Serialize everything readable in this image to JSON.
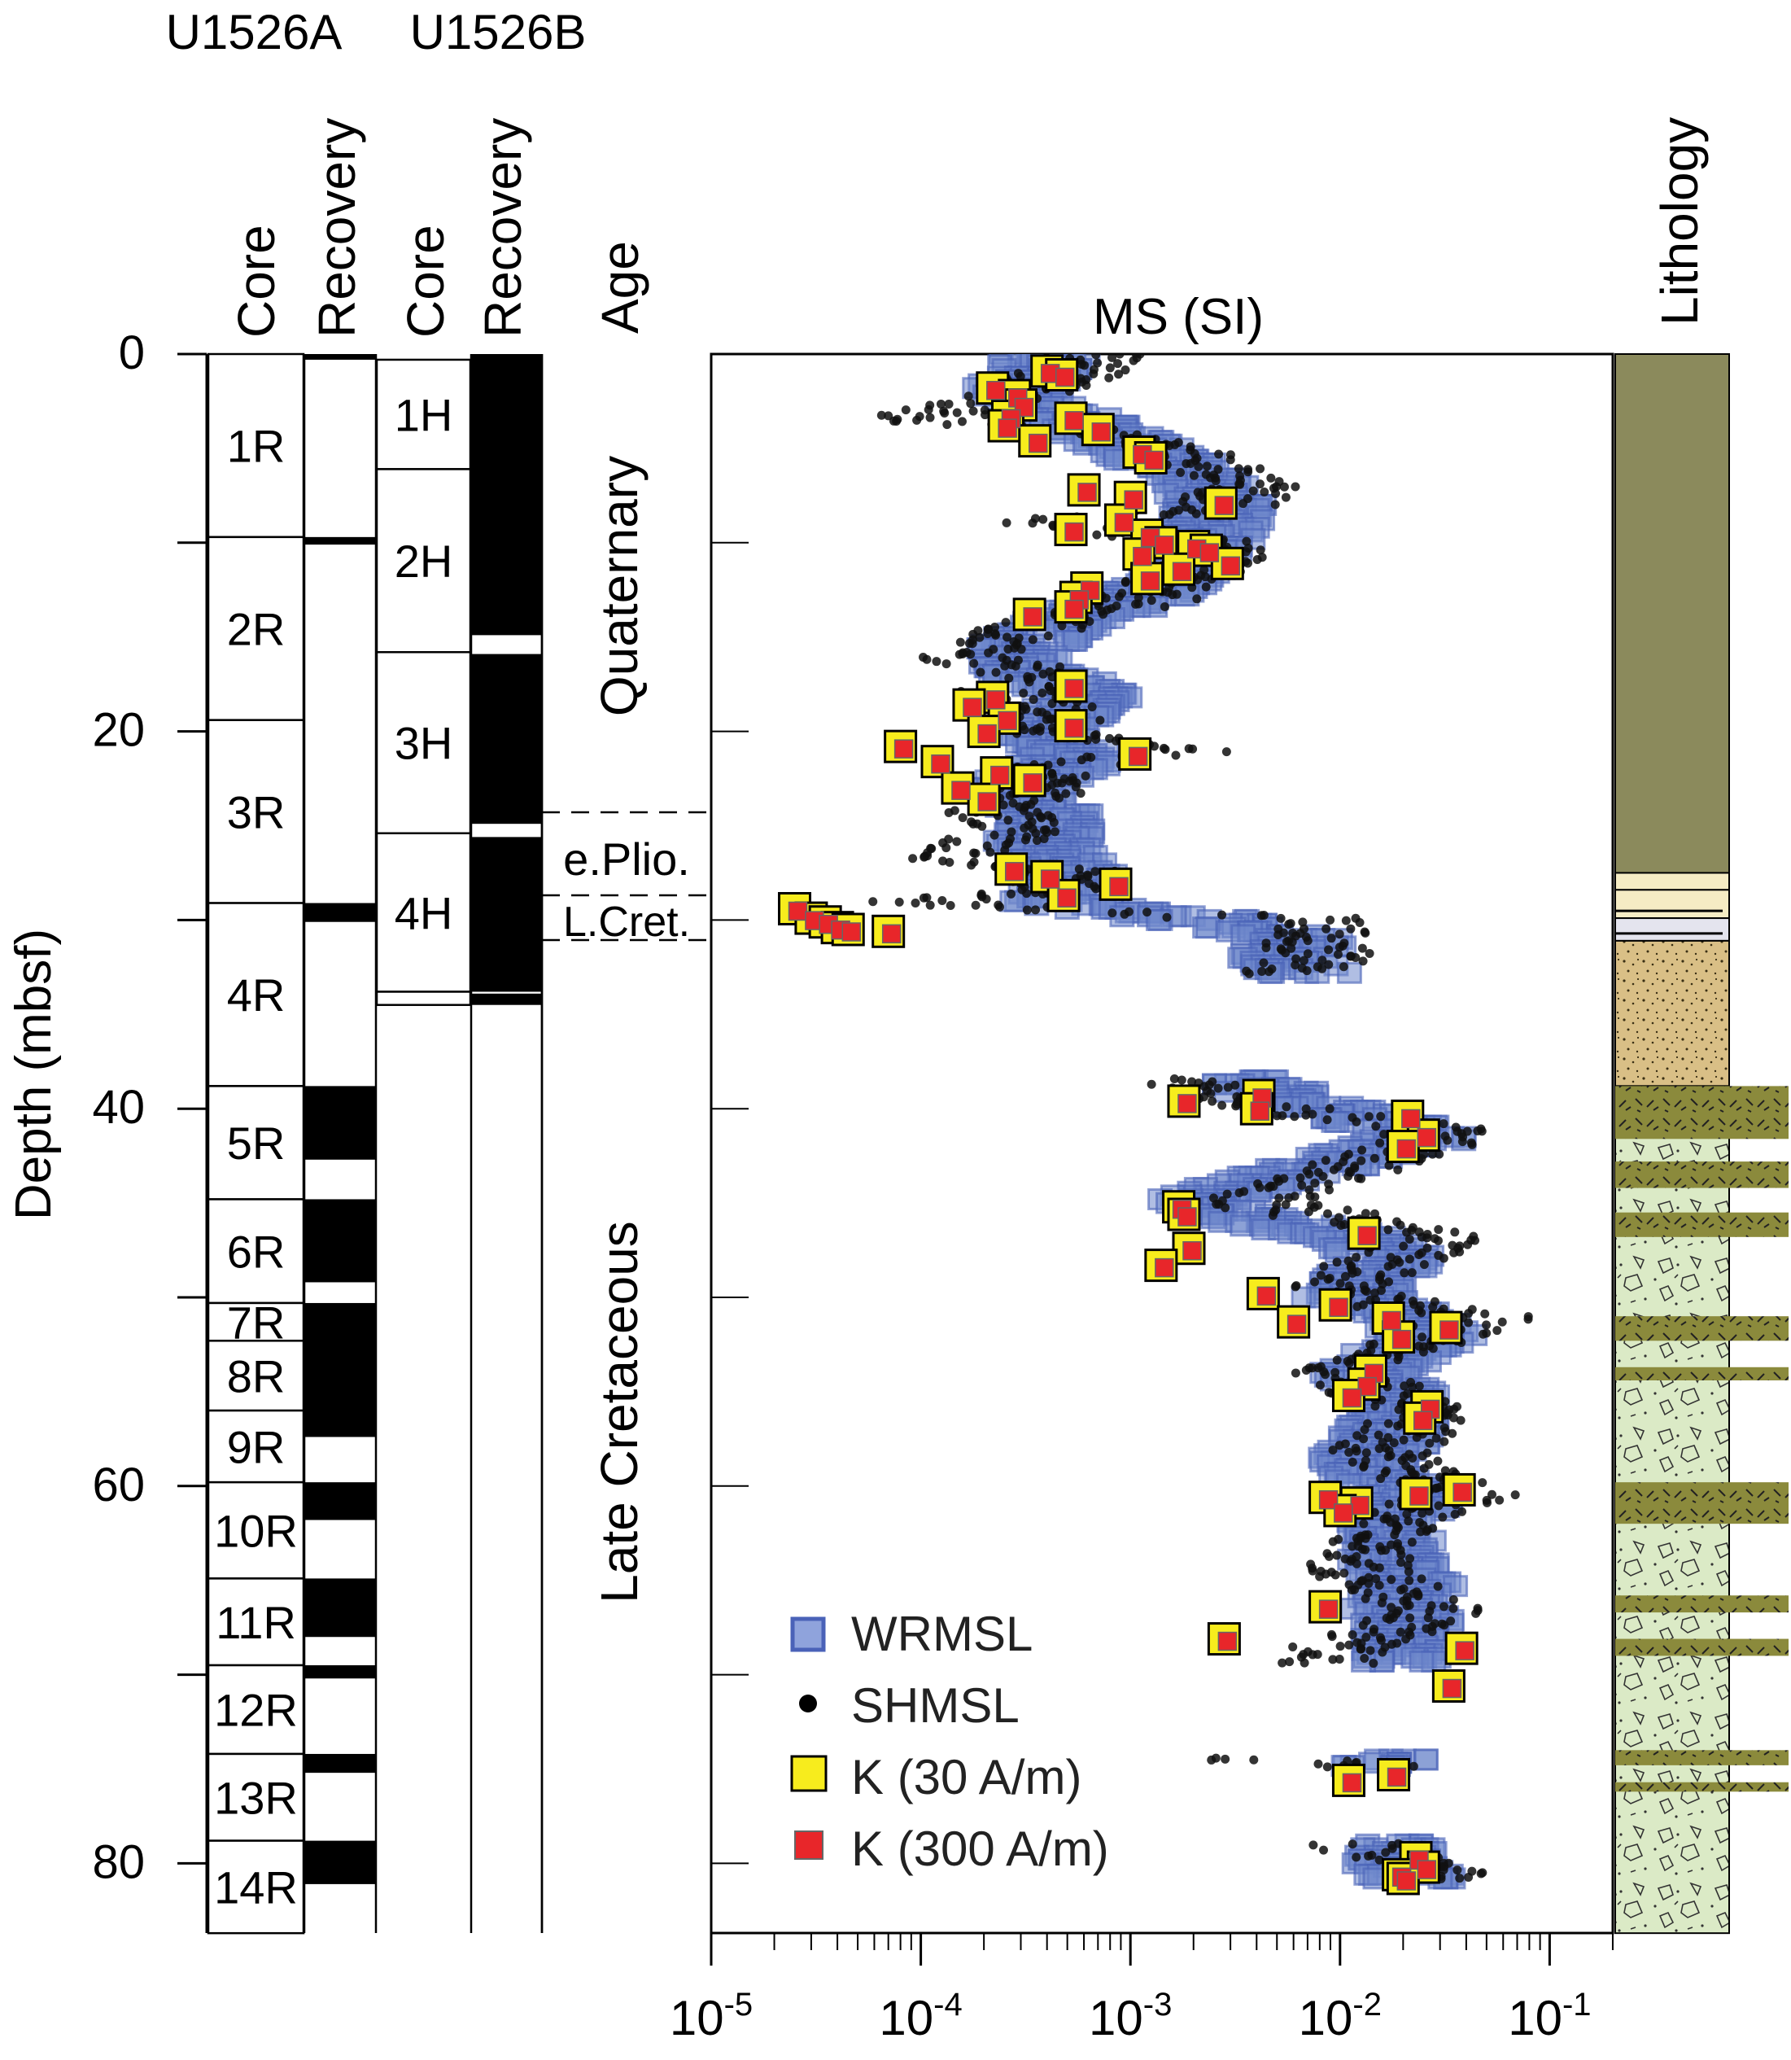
{
  "headers": {
    "site_a": "U1526A",
    "site_b": "U1526B",
    "core_a": "Core",
    "recovery_a": "Recovery",
    "core_b": "Core",
    "recovery_b": "Recovery",
    "age": "Age",
    "ms": "MS (SI)",
    "lithology": "Lithology",
    "depth_axis": "Depth (mbsf)"
  },
  "depth_ticks": [
    {
      "label": "0",
      "value": 0
    },
    {
      "label": "20",
      "value": 20
    },
    {
      "label": "40",
      "value": 40
    },
    {
      "label": "60",
      "value": 60
    },
    {
      "label": "80",
      "value": 80
    }
  ],
  "ms_ticks": [
    {
      "base": "10",
      "exp": "-5",
      "value": -5
    },
    {
      "base": "10",
      "exp": "-4",
      "value": -4
    },
    {
      "base": "10",
      "exp": "-3",
      "value": -3
    },
    {
      "base": "10",
      "exp": "-2",
      "value": -2
    },
    {
      "base": "10",
      "exp": "-1",
      "value": -1
    }
  ],
  "cores_a": [
    {
      "label": "1R",
      "top": 0,
      "bottom": 9.7
    },
    {
      "label": "2R",
      "top": 9.7,
      "bottom": 19.4
    },
    {
      "label": "3R",
      "top": 19.4,
      "bottom": 29.1
    },
    {
      "label": "4R",
      "top": 29.1,
      "bottom": 38.8
    },
    {
      "label": "5R",
      "top": 38.8,
      "bottom": 44.8
    },
    {
      "label": "6R",
      "top": 44.8,
      "bottom": 50.3
    },
    {
      "label": "7R",
      "top": 50.3,
      "bottom": 52.3
    },
    {
      "label": "8R",
      "top": 52.3,
      "bottom": 56.0
    },
    {
      "label": "9R",
      "top": 56.0,
      "bottom": 59.8
    },
    {
      "label": "10R",
      "top": 59.8,
      "bottom": 64.9
    },
    {
      "label": "11R",
      "top": 64.9,
      "bottom": 69.5
    },
    {
      "label": "12R",
      "top": 69.5,
      "bottom": 74.2
    },
    {
      "label": "13R",
      "top": 74.2,
      "bottom": 78.8
    },
    {
      "label": "14R",
      "top": 78.8,
      "bottom": 83.7
    }
  ],
  "recovery_a": [
    {
      "top": 0.0,
      "bottom": 0.3
    },
    {
      "top": 9.7,
      "bottom": 10.1
    },
    {
      "top": 29.1,
      "bottom": 30.1
    },
    {
      "top": 38.8,
      "bottom": 42.7
    },
    {
      "top": 44.8,
      "bottom": 49.2
    },
    {
      "top": 50.3,
      "bottom": 57.4
    },
    {
      "top": 59.8,
      "bottom": 61.8
    },
    {
      "top": 64.9,
      "bottom": 68.0
    },
    {
      "top": 69.5,
      "bottom": 70.2
    },
    {
      "top": 74.2,
      "bottom": 75.2
    },
    {
      "top": 78.8,
      "bottom": 81.1
    }
  ],
  "cores_b": [
    {
      "label": "1H",
      "top": 0.3,
      "bottom": 6.1
    },
    {
      "label": "2H",
      "top": 6.1,
      "bottom": 15.8
    },
    {
      "label": "3H",
      "top": 15.8,
      "bottom": 25.4
    },
    {
      "label": "4H",
      "top": 25.4,
      "bottom": 33.8
    },
    {
      "label": "",
      "top": 33.8,
      "bottom": 34.5
    }
  ],
  "recovery_b": [
    {
      "top": 0.0,
      "bottom": 14.9
    },
    {
      "top": 15.9,
      "bottom": 24.9
    },
    {
      "top": 25.6,
      "bottom": 33.8
    },
    {
      "top": 33.9,
      "bottom": 34.5
    }
  ],
  "age": {
    "quaternary": "Quaternary",
    "e_plio": "e.Plio.",
    "l_cret": "L.Cret.",
    "late_cretaceous": "Late Cretaceous"
  },
  "lithology_units": [
    {
      "top": 0.0,
      "bottom": 27.5,
      "color": "#8b8a5c",
      "pattern": "solid"
    },
    {
      "top": 27.5,
      "bottom": 28.4,
      "color": "#f5ecc4",
      "pattern": "solid"
    },
    {
      "top": 28.4,
      "bottom": 29.9,
      "color": "#f5ecc4",
      "pattern": "wavy"
    },
    {
      "top": 29.9,
      "bottom": 31.1,
      "color": "#e4e4ee",
      "pattern": "wavy"
    },
    {
      "top": 31.1,
      "bottom": 38.8,
      "color": "#d9bf86",
      "pattern": "sand"
    },
    {
      "top": 38.8,
      "bottom": 83.7,
      "color": "#dbeac6",
      "pattern": "breccia"
    }
  ],
  "olive_bands": [
    {
      "top": 38.8,
      "bottom": 41.6
    },
    {
      "top": 42.8,
      "bottom": 44.2
    },
    {
      "top": 45.5,
      "bottom": 46.8
    },
    {
      "top": 51.0,
      "bottom": 52.3
    },
    {
      "top": 53.7,
      "bottom": 54.4
    },
    {
      "top": 59.8,
      "bottom": 62.0
    },
    {
      "top": 65.8,
      "bottom": 66.7
    },
    {
      "top": 68.1,
      "bottom": 69.0
    },
    {
      "top": 74.0,
      "bottom": 74.8
    },
    {
      "top": 75.7,
      "bottom": 76.2
    }
  ],
  "legend": [
    {
      "label": "WRMSL",
      "marker": "blue-square"
    },
    {
      "label": "SHMSL",
      "marker": "black-dot"
    },
    {
      "label": "K (30 A/m)",
      "marker": "yellow-square"
    },
    {
      "label": "K (300 A/m)",
      "marker": "red-square"
    }
  ],
  "colors": {
    "wrmsl": "#4a62b8",
    "shmsl": "#1a1a1a",
    "k30": "#f7ec1d",
    "k300": "#e8262a",
    "olive": "#8b8a3c"
  },
  "chart_data": {
    "type": "scatter",
    "title": "MS (SI)",
    "ylabel": "Depth (mbsf)",
    "xlabel": "",
    "x_scale": "log",
    "xlim": [
      1e-05,
      0.2
    ],
    "ylim": [
      0,
      83.7
    ],
    "grid": false,
    "legend_position": "lower-left",
    "series": [
      {
        "name": "WRMSL",
        "profile": [
          [
            0.0,
            0.00045
          ],
          [
            1.0,
            0.0004
          ],
          [
            2.0,
            0.0003
          ],
          [
            3.0,
            0.0004
          ],
          [
            4.0,
            0.0008
          ],
          [
            5.0,
            0.0012
          ],
          [
            6.0,
            0.0018
          ],
          [
            7.0,
            0.0025
          ],
          [
            8.0,
            0.003
          ],
          [
            9.0,
            0.0028
          ],
          [
            10.0,
            0.0025
          ],
          [
            11.0,
            0.002
          ],
          [
            12.0,
            0.0018
          ],
          [
            13.0,
            0.0012
          ],
          [
            14.0,
            0.0006
          ],
          [
            15.0,
            0.0004
          ],
          [
            16.0,
            0.0003
          ],
          [
            17.0,
            0.0004
          ],
          [
            18.0,
            0.0007
          ],
          [
            19.0,
            0.0006
          ],
          [
            20.0,
            0.0004
          ],
          [
            21.0,
            0.0006
          ],
          [
            22.0,
            0.0005
          ],
          [
            23.0,
            0.0003
          ],
          [
            24.0,
            0.0004
          ],
          [
            25.0,
            0.0005
          ],
          [
            26.0,
            0.0004
          ],
          [
            27.0,
            0.0005
          ],
          [
            28.0,
            0.0007
          ],
          [
            29.0,
            0.00035
          ],
          [
            30.0,
            0.0025
          ],
          [
            31.0,
            0.008
          ],
          [
            32.0,
            0.006
          ],
          [
            33.0,
            0.008
          ],
          [
            38.5,
            0.0035
          ],
          [
            39.5,
            0.007
          ],
          [
            40.5,
            0.015
          ],
          [
            41.5,
            0.03
          ],
          [
            42.0,
            0.02
          ],
          [
            45.0,
            0.002
          ],
          [
            46.0,
            0.005
          ],
          [
            47.0,
            0.015
          ],
          [
            48.0,
            0.02
          ],
          [
            49.0,
            0.015
          ],
          [
            50.0,
            0.012
          ],
          [
            51.0,
            0.025
          ],
          [
            52.0,
            0.03
          ],
          [
            53.0,
            0.02
          ],
          [
            54.0,
            0.015
          ],
          [
            55.0,
            0.02
          ],
          [
            56.0,
            0.02
          ],
          [
            57.0,
            0.02
          ],
          [
            58.5,
            0.015
          ],
          [
            59.5,
            0.015
          ],
          [
            60.5,
            0.025
          ],
          [
            61.5,
            0.02
          ],
          [
            64.5,
            0.02
          ],
          [
            65.5,
            0.025
          ],
          [
            66.5,
            0.02
          ],
          [
            67.5,
            0.025
          ],
          [
            68.5,
            0.02
          ],
          [
            69.5,
            0.02
          ],
          [
            74.5,
            0.02
          ],
          [
            75.0,
            0.015
          ],
          [
            79.0,
            0.02
          ],
          [
            80.0,
            0.02
          ],
          [
            81.0,
            0.025
          ]
        ]
      },
      {
        "name": "SHMSL",
        "profile": [
          [
            0.0,
            0.0007
          ],
          [
            1.0,
            0.0005
          ],
          [
            2.0,
            0.0003
          ],
          [
            3.5,
            0.0001
          ],
          [
            4.0,
            0.0005
          ],
          [
            5.0,
            0.0015
          ],
          [
            6.0,
            0.0025
          ],
          [
            7.0,
            0.0035
          ],
          [
            8.0,
            0.003
          ],
          [
            9.0,
            0.0004
          ],
          [
            10.0,
            0.0025
          ],
          [
            11.0,
            0.0025
          ],
          [
            12.0,
            0.0016
          ],
          [
            13.0,
            0.0012
          ],
          [
            14.0,
            0.0005
          ],
          [
            15.0,
            0.00025
          ],
          [
            16.0,
            0.00015
          ],
          [
            17.0,
            0.0004
          ],
          [
            18.0,
            0.00025
          ],
          [
            19.0,
            0.00045
          ],
          [
            20.0,
            0.00035
          ],
          [
            21.0,
            0.0022
          ],
          [
            22.0,
            0.00035
          ],
          [
            23.0,
            0.0004
          ],
          [
            24.0,
            0.0002
          ],
          [
            25.0,
            0.0003
          ],
          [
            26.0,
            0.0002
          ],
          [
            26.7,
            0.0001
          ],
          [
            27.5,
            0.0005
          ],
          [
            28.5,
            0.00045
          ],
          [
            29.0,
            0.0001
          ],
          [
            29.6,
            0.0007
          ],
          [
            30.0,
            0.009
          ],
          [
            31.0,
            0.007
          ],
          [
            32.0,
            0.009
          ],
          [
            33.0,
            0.004
          ],
          [
            38.5,
            0.0018
          ],
          [
            39.5,
            0.0025
          ],
          [
            40.5,
            0.01
          ],
          [
            41.0,
            0.03
          ],
          [
            42.0,
            0.025
          ],
          [
            45.0,
            0.0035
          ],
          [
            46.0,
            0.015
          ],
          [
            47.0,
            0.03
          ],
          [
            48.0,
            0.018
          ],
          [
            49.0,
            0.01
          ],
          [
            50.0,
            0.012
          ],
          [
            51.0,
            0.05
          ],
          [
            52.0,
            0.03
          ],
          [
            53.0,
            0.015
          ],
          [
            54.0,
            0.01
          ],
          [
            55.0,
            0.015
          ],
          [
            56.0,
            0.03
          ],
          [
            57.0,
            0.02
          ],
          [
            58.5,
            0.015
          ],
          [
            59.5,
            0.025
          ],
          [
            60.5,
            0.04
          ],
          [
            61.5,
            0.02
          ],
          [
            64.5,
            0.012
          ],
          [
            65.5,
            0.02
          ],
          [
            66.5,
            0.03
          ],
          [
            67.5,
            0.02
          ],
          [
            68.5,
            0.01
          ],
          [
            69.5,
            0.008
          ],
          [
            74.5,
            0.004
          ],
          [
            75.0,
            0.03
          ],
          [
            79.0,
            0.012
          ],
          [
            80.0,
            0.03
          ],
          [
            81.0,
            0.025
          ]
        ]
      },
      {
        "name": "K (30 A/m)",
        "points": [
          [
            0.9,
            0.0004
          ],
          [
            1.1,
            0.00047
          ],
          [
            1.8,
            0.00022
          ],
          [
            2.2,
            0.00028
          ],
          [
            2.7,
            0.0003
          ],
          [
            3.3,
            0.00026
          ],
          [
            3.4,
            0.00052
          ],
          [
            3.8,
            0.00025
          ],
          [
            4.0,
            0.0007
          ],
          [
            4.6,
            0.00035
          ],
          [
            5.2,
            0.0011
          ],
          [
            5.5,
            0.00125
          ],
          [
            7.2,
            0.0006
          ],
          [
            7.6,
            0.001
          ],
          [
            7.9,
            0.0027
          ],
          [
            8.8,
            0.0009
          ],
          [
            9.3,
            0.00052
          ],
          [
            9.6,
            0.0012
          ],
          [
            10.0,
            0.0014
          ],
          [
            10.2,
            0.002
          ],
          [
            10.4,
            0.0023
          ],
          [
            10.6,
            0.0011
          ],
          [
            11.1,
            0.0029
          ],
          [
            11.4,
            0.0017
          ],
          [
            11.9,
            0.0012
          ],
          [
            12.4,
            0.00062
          ],
          [
            12.9,
            0.00055
          ],
          [
            13.4,
            0.00052
          ],
          [
            13.8,
            0.00033
          ],
          [
            17.6,
            0.00052
          ],
          [
            18.2,
            0.00022
          ],
          [
            18.6,
            0.00017
          ],
          [
            19.3,
            0.00025
          ],
          [
            19.7,
            0.00052
          ],
          [
            20.0,
            0.0002
          ],
          [
            20.8,
            8e-05
          ],
          [
            21.2,
            0.00105
          ],
          [
            21.6,
            0.00012
          ],
          [
            22.2,
            0.00023
          ],
          [
            22.6,
            0.00033
          ],
          [
            23.0,
            0.00015
          ],
          [
            23.6,
            0.0002
          ],
          [
            27.3,
            0.00027
          ],
          [
            27.7,
            0.0004
          ],
          [
            28.1,
            0.00085
          ],
          [
            28.7,
            0.00048
          ],
          [
            29.4,
            2.5e-05
          ],
          [
            29.9,
            3e-05
          ],
          [
            30.1,
            3.5e-05
          ],
          [
            30.4,
            4e-05
          ],
          [
            30.5,
            4.5e-05
          ],
          [
            30.6,
            7e-05
          ],
          [
            39.6,
            0.0018
          ],
          [
            39.3,
            0.0041
          ],
          [
            40.0,
            0.004
          ],
          [
            40.4,
            0.021
          ],
          [
            41.4,
            0.025
          ],
          [
            42.0,
            0.02
          ],
          [
            45.2,
            0.0017
          ],
          [
            45.6,
            0.0018
          ],
          [
            46.6,
            0.013
          ],
          [
            47.4,
            0.0019
          ],
          [
            48.3,
            0.0014
          ],
          [
            49.8,
            0.0043
          ],
          [
            50.4,
            0.0095
          ],
          [
            51.3,
            0.006
          ],
          [
            51.1,
            0.017
          ],
          [
            51.6,
            0.032
          ],
          [
            52.1,
            0.019
          ],
          [
            53.9,
            0.014
          ],
          [
            54.6,
            0.013
          ],
          [
            55.2,
            0.011
          ],
          [
            55.8,
            0.026
          ],
          [
            56.4,
            0.024
          ],
          [
            60.2,
            0.037
          ],
          [
            60.4,
            0.023
          ],
          [
            60.6,
            0.0085
          ],
          [
            60.9,
            0.012
          ],
          [
            61.3,
            0.01
          ],
          [
            66.4,
            0.0085
          ],
          [
            68.1,
            0.0028
          ],
          [
            68.6,
            0.038
          ],
          [
            70.6,
            0.033
          ],
          [
            75.3,
            0.018
          ],
          [
            75.6,
            0.011
          ],
          [
            79.7,
            0.023
          ],
          [
            80.2,
            0.025
          ],
          [
            80.6,
            0.019
          ],
          [
            80.8,
            0.02
          ]
        ]
      },
      {
        "name": "K (300 A/m)",
        "same_as": "K (30 A/m)"
      }
    ]
  }
}
